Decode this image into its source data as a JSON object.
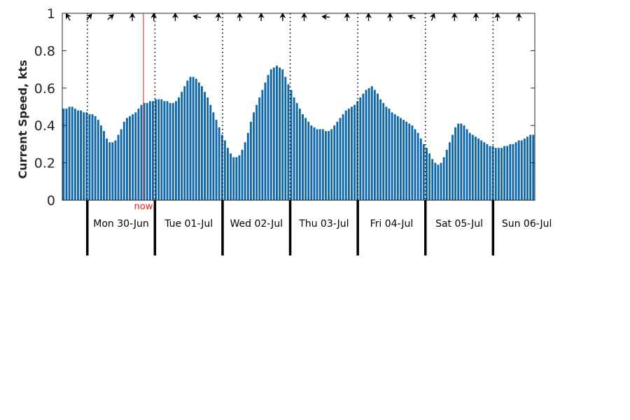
{
  "chart_data": {
    "type": "bar",
    "ylabel": "Current Speed, kts",
    "ylim": [
      0,
      1
    ],
    "yticks": [
      "0",
      "0.2",
      "0.4",
      "0.6",
      "0.8",
      "1"
    ],
    "x_start_day_offset": -0.37,
    "hours_per_bar": 2,
    "days": [
      "Mon 30-Jun",
      "Tue 01-Jul",
      "Wed 02-Jul",
      "Thu 03-Jul",
      "Fri 04-Jul",
      "Sat 05-Jul",
      "Sun 06-Jul"
    ],
    "now_label": "now",
    "now_day": 0.83,
    "values": [
      0.49,
      0.49,
      0.5,
      0.5,
      0.49,
      0.48,
      0.48,
      0.47,
      0.47,
      0.46,
      0.46,
      0.45,
      0.43,
      0.4,
      0.37,
      0.33,
      0.31,
      0.31,
      0.32,
      0.35,
      0.38,
      0.42,
      0.44,
      0.45,
      0.46,
      0.47,
      0.49,
      0.51,
      0.52,
      0.52,
      0.53,
      0.53,
      0.54,
      0.54,
      0.54,
      0.53,
      0.53,
      0.52,
      0.52,
      0.53,
      0.55,
      0.58,
      0.61,
      0.64,
      0.66,
      0.66,
      0.65,
      0.63,
      0.61,
      0.58,
      0.55,
      0.51,
      0.47,
      0.43,
      0.39,
      0.35,
      0.32,
      0.28,
      0.25,
      0.23,
      0.23,
      0.24,
      0.27,
      0.31,
      0.36,
      0.42,
      0.47,
      0.51,
      0.55,
      0.59,
      0.63,
      0.67,
      0.7,
      0.71,
      0.72,
      0.71,
      0.7,
      0.66,
      0.62,
      0.59,
      0.55,
      0.52,
      0.49,
      0.46,
      0.44,
      0.42,
      0.4,
      0.39,
      0.38,
      0.38,
      0.38,
      0.37,
      0.37,
      0.38,
      0.4,
      0.42,
      0.44,
      0.46,
      0.48,
      0.49,
      0.5,
      0.51,
      0.53,
      0.55,
      0.57,
      0.59,
      0.6,
      0.61,
      0.59,
      0.57,
      0.54,
      0.52,
      0.5,
      0.49,
      0.47,
      0.46,
      0.45,
      0.44,
      0.43,
      0.42,
      0.41,
      0.4,
      0.38,
      0.36,
      0.33,
      0.3,
      0.28,
      0.25,
      0.22,
      0.2,
      0.19,
      0.2,
      0.23,
      0.27,
      0.31,
      0.35,
      0.39,
      0.41,
      0.41,
      0.4,
      0.38,
      0.36,
      0.35,
      0.34,
      0.33,
      0.32,
      0.31,
      0.3,
      0.29,
      0.29,
      0.28,
      0.28,
      0.28,
      0.29,
      0.29,
      0.3,
      0.3,
      0.31,
      0.32,
      0.32,
      0.33,
      0.34,
      0.35,
      0.35
    ],
    "direction_angles": [
      -30,
      40,
      50,
      0,
      0,
      0,
      -80,
      5,
      0,
      0,
      0,
      0,
      -85,
      0,
      0,
      0,
      -70,
      20,
      0,
      0,
      0,
      0
    ],
    "colors": {
      "bar": "#1068a8",
      "now_line": "#e41a1c",
      "now_text": "#e41a1c",
      "axis": "#262626"
    },
    "grid": false
  }
}
